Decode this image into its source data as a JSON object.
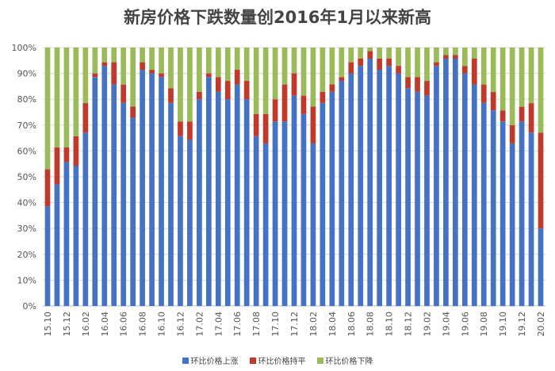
{
  "chart_data": {
    "type": "bar",
    "stacked": true,
    "title": "新房价格下跌数量创2016年1月以来新高",
    "ylim": [
      0,
      100
    ],
    "y_ticks": [
      "0%",
      "10%",
      "20%",
      "30%",
      "40%",
      "50%",
      "60%",
      "70%",
      "80%",
      "90%",
      "100%"
    ],
    "x_tick_labels": [
      "15.10",
      "15.12",
      "16.02",
      "16.04",
      "16.06",
      "16.08",
      "16.10",
      "16.12",
      "17.02",
      "17.04",
      "17.06",
      "17.08",
      "17.10",
      "17.12",
      "18.02",
      "18.04",
      "18.06",
      "18.08",
      "18.10",
      "18.12",
      "19.02",
      "19.04",
      "19.06",
      "19.08",
      "19.10",
      "19.12",
      "20.02"
    ],
    "categories": [
      "15.10",
      "15.11",
      "15.12",
      "16.01",
      "16.02",
      "16.03",
      "16.04",
      "16.05",
      "16.06",
      "16.07",
      "16.08",
      "16.09",
      "16.10",
      "16.11",
      "16.12",
      "17.01",
      "17.02",
      "17.03",
      "17.04",
      "17.05",
      "17.06",
      "17.07",
      "17.08",
      "17.09",
      "17.10",
      "17.11",
      "17.12",
      "18.01",
      "18.02",
      "18.03",
      "18.04",
      "18.05",
      "18.06",
      "18.07",
      "18.08",
      "18.09",
      "18.10",
      "18.11",
      "18.12",
      "19.01",
      "19.02",
      "19.03",
      "19.04",
      "19.05",
      "19.06",
      "19.07",
      "19.08",
      "19.09",
      "19.10",
      "19.11",
      "19.12",
      "20.01",
      "20.02"
    ],
    "series": [
      {
        "name": "环比价格上涨",
        "color": "#4472C4",
        "values": [
          38.6,
          47.1,
          55.7,
          54.3,
          67.1,
          88.6,
          92.9,
          85.7,
          78.6,
          72.9,
          91.4,
          90.0,
          88.6,
          78.6,
          65.7,
          64.3,
          80.0,
          88.6,
          82.9,
          80.0,
          85.7,
          80.0,
          65.7,
          62.9,
          71.4,
          71.4,
          81.4,
          74.3,
          62.9,
          78.6,
          82.9,
          87.1,
          90.0,
          92.9,
          95.7,
          91.4,
          92.9,
          90.0,
          84.3,
          82.9,
          81.4,
          92.9,
          95.7,
          95.7,
          90.0,
          85.7,
          78.6,
          75.7,
          71.4,
          62.9,
          71.4,
          67.1,
          30.0
        ]
      },
      {
        "name": "环比价格持平",
        "color": "#C0392B",
        "values": [
          14.3,
          14.3,
          5.7,
          11.4,
          11.4,
          1.4,
          1.4,
          8.6,
          7.1,
          4.3,
          2.9,
          1.4,
          1.4,
          5.7,
          5.7,
          7.1,
          2.9,
          1.4,
          5.7,
          7.1,
          5.7,
          7.1,
          8.6,
          11.4,
          8.6,
          14.3,
          8.6,
          7.1,
          14.3,
          4.3,
          2.9,
          1.4,
          4.3,
          2.9,
          2.9,
          4.3,
          2.9,
          2.9,
          4.3,
          5.7,
          5.7,
          1.4,
          1.4,
          1.4,
          2.9,
          10.0,
          7.1,
          7.1,
          4.3,
          7.1,
          5.7,
          11.4,
          37.1
        ]
      },
      {
        "name": "环比价格下降",
        "color": "#9BBB59",
        "values": [
          47.1,
          38.6,
          38.6,
          34.3,
          21.5,
          10.0,
          5.7,
          5.7,
          14.3,
          22.8,
          5.7,
          8.6,
          10.0,
          15.7,
          28.6,
          28.6,
          17.1,
          10.0,
          11.4,
          12.9,
          8.6,
          12.9,
          25.7,
          25.7,
          20.0,
          14.3,
          10.0,
          18.6,
          22.8,
          17.1,
          14.2,
          11.5,
          5.7,
          4.2,
          1.4,
          4.3,
          4.2,
          7.1,
          11.4,
          11.4,
          12.9,
          5.7,
          2.9,
          2.9,
          7.1,
          4.3,
          14.3,
          17.2,
          24.3,
          30.0,
          22.9,
          21.5,
          32.9
        ]
      }
    ],
    "legend_position": "bottom",
    "grid": true
  }
}
